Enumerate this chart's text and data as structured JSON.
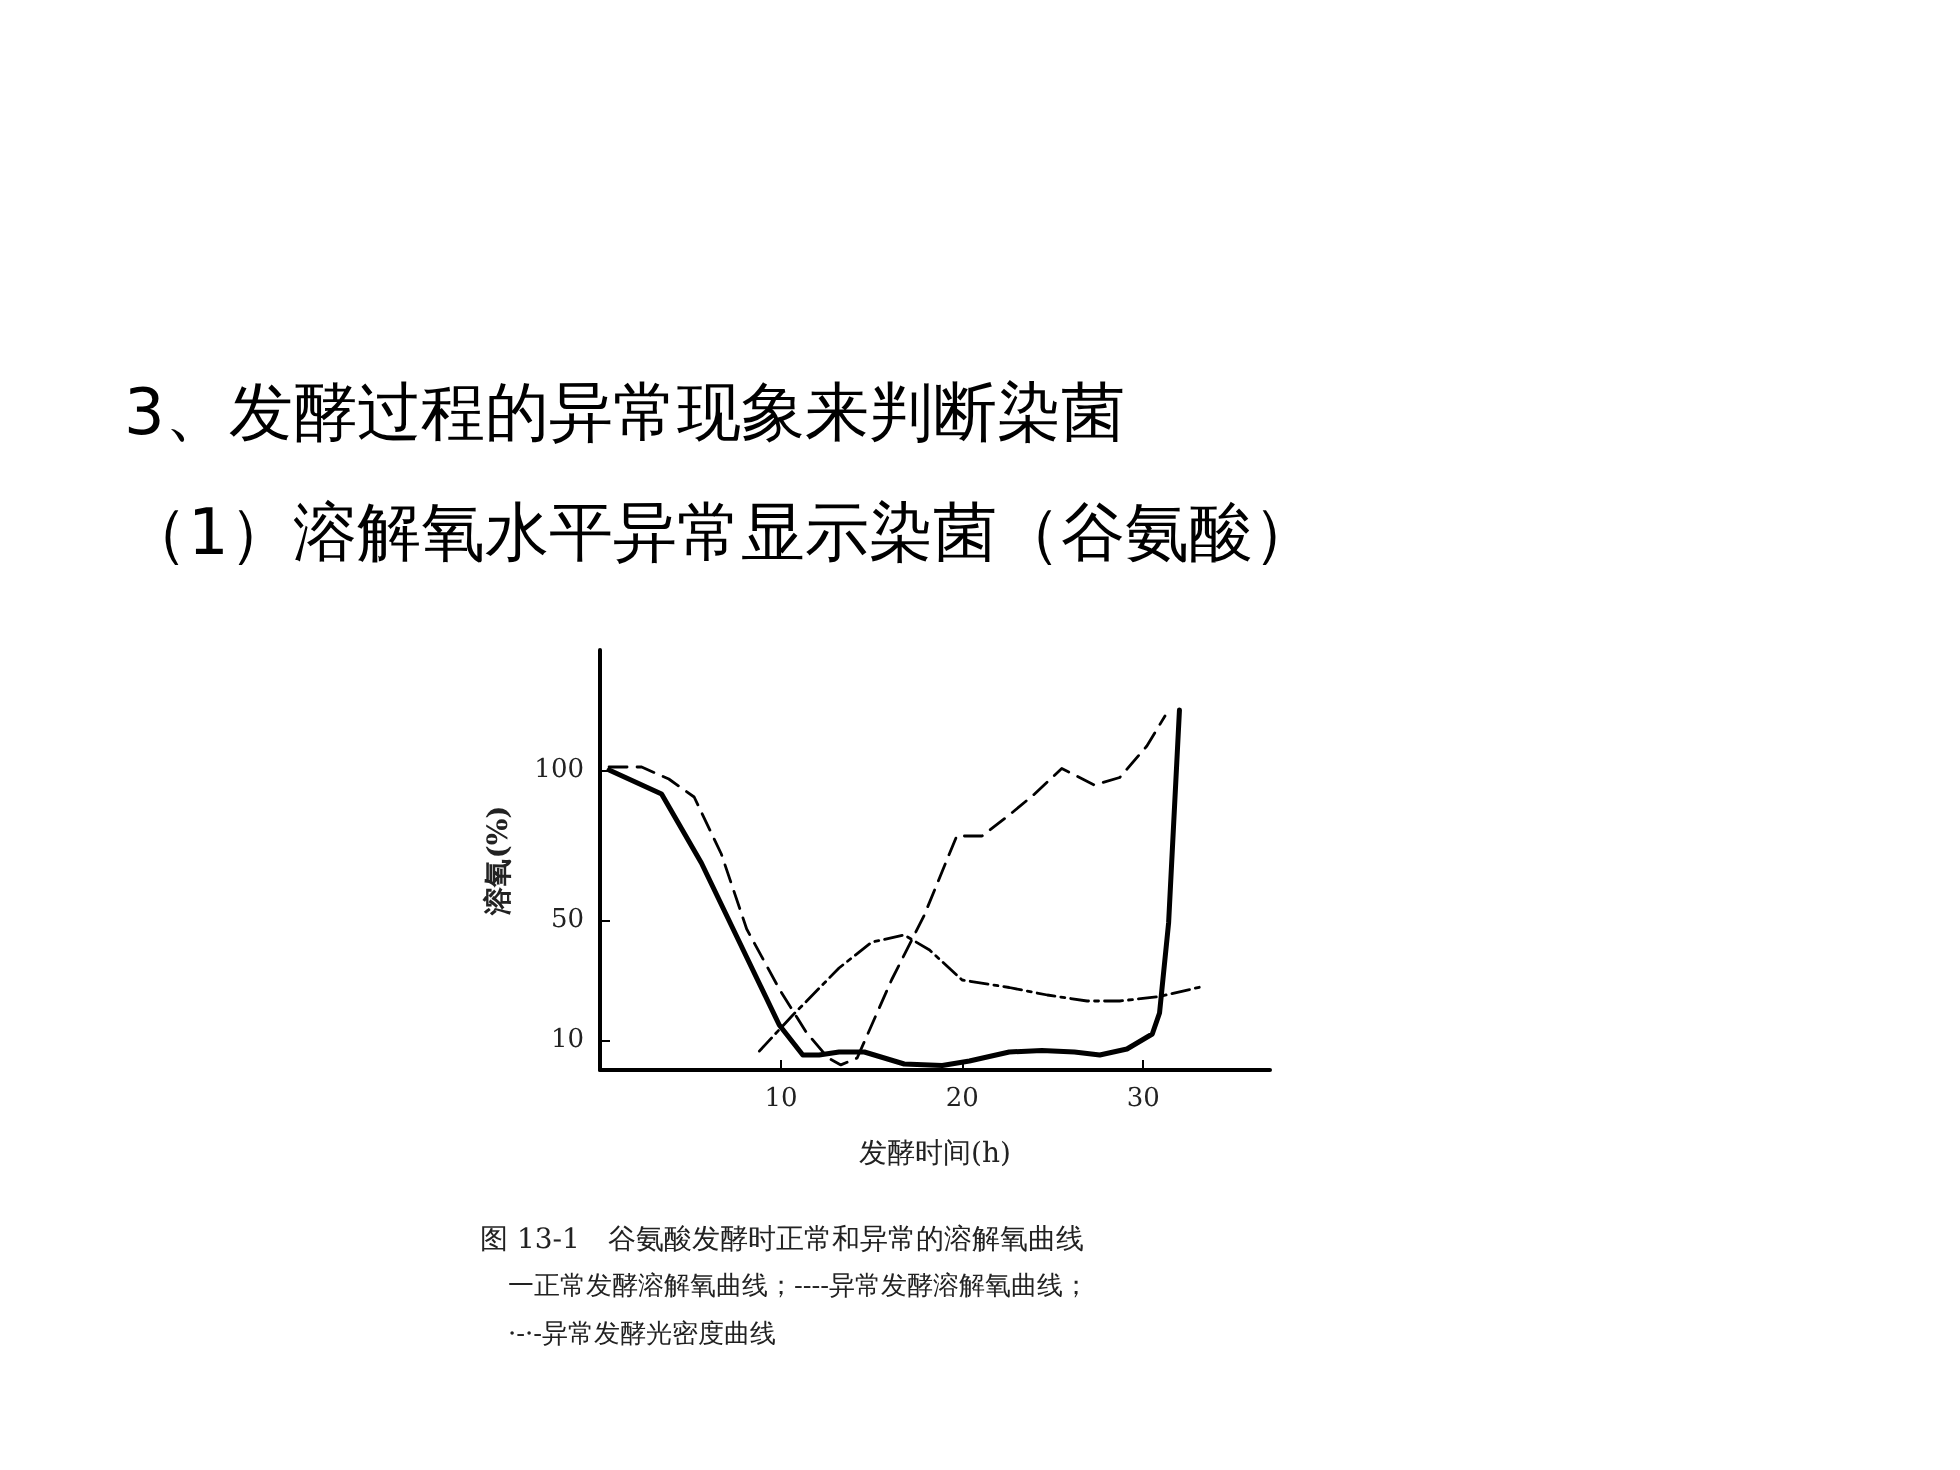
{
  "chart_data": {
    "type": "line",
    "title": "3、发酵过程的异常现象来判断染菌",
    "subtitle": "（1）溶解氧水平异常显示染菌（谷氨酸）",
    "xlabel": "发酵时间(h)",
    "ylabel": "溶氧(%)",
    "annotations": [
      "图 13-1　谷氨酸发酵时正常和异常的溶解氧曲线",
      "一正常发酵溶解氧曲线；----异常发酵溶解氧曲线；",
      "·-·-异常发酵光密度曲线"
    ],
    "xlim": [
      0,
      37
    ],
    "xticks": [
      10,
      20,
      30
    ],
    "ylim": [
      0,
      140
    ],
    "yticks": [
      10,
      50,
      100
    ],
    "grid": false,
    "marker": "none",
    "series": [
      {
        "color": "#000000",
        "line_style": "solid",
        "x": [
          0.5,
          3.4,
          5.6,
          9.9,
          11.2,
          12.1,
          13.2,
          14.6,
          16.8,
          18.9,
          20.4,
          22.6,
          24.4,
          26.2,
          27.6,
          29.1,
          30.5,
          30.9,
          31.4,
          32
        ],
        "values": [
          100,
          92,
          69,
          15,
          5,
          5,
          6,
          6,
          2,
          1.5,
          3,
          6,
          6.5,
          6,
          5,
          7,
          12,
          19,
          49,
          120
        ]
      },
      {
        "color": "#000000",
        "line_style": "dashed",
        "x": [
          0.5,
          2.3,
          3.8,
          5.2,
          6.7,
          8.1,
          9.9,
          11.4,
          12.6,
          13.3,
          14.2,
          16.1,
          17.9,
          19.7,
          21.1,
          22.6,
          24,
          25.5,
          27.3,
          28.7,
          30.2,
          31.2
        ],
        "values": [
          101,
          101,
          97,
          91,
          72,
          47,
          27,
          12.5,
          4,
          1.7,
          4,
          30,
          51.5,
          78,
          78,
          85,
          92,
          100.5,
          95,
          97.5,
          108,
          118
        ]
      },
      {
        "color": "#000000",
        "line_style": "dotted",
        "x": [
          8.8,
          10.6,
          13.2,
          15,
          16.8,
          18.2,
          20,
          22.6,
          24.7,
          26.9,
          28.7,
          30.9,
          33.4
        ],
        "values": [
          6.3,
          18,
          34,
          42.6,
          45,
          40,
          30,
          27.5,
          25,
          23,
          23,
          24.5,
          28
        ]
      }
    ]
  }
}
